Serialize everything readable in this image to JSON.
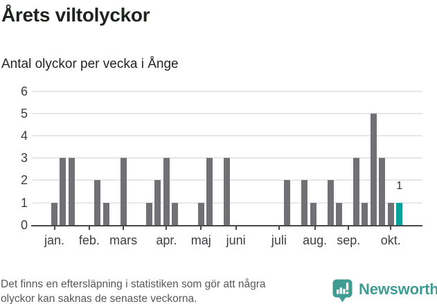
{
  "title": "Årets viltolyckor",
  "subtitle": "Antal olyckor per vecka i Ånge",
  "footnote": {
    "line1": "Det finns en eftersläpning i statistiken som gör att några",
    "line2": "olyckor kan saknas de senaste veckorna."
  },
  "brand": {
    "name": "Newsworthy",
    "color": "#3f9c93"
  },
  "colors": {
    "bar": "#717175",
    "highlight_bar": "#00a39b",
    "gridline": "#e7e7e9",
    "axis": "#47474c",
    "tick_label": "#3d3d43",
    "value_label": "#2e2e33"
  },
  "chart_data": {
    "type": "bar",
    "title": "Årets viltolyckor",
    "subtitle": "Antal olyckor per vecka i Ånge",
    "xlabel": "",
    "ylabel": "",
    "ylim": [
      0,
      6
    ],
    "yticks": [
      0,
      1,
      2,
      3,
      4,
      5,
      6
    ],
    "grid": "horizontal",
    "categories_unit": "week",
    "weekly_values": [
      1,
      3,
      3,
      0,
      0,
      2,
      1,
      0,
      3,
      0,
      0,
      1,
      2,
      3,
      1,
      0,
      0,
      1,
      3,
      0,
      3,
      0,
      0,
      0,
      0,
      0,
      0,
      2,
      0,
      2,
      1,
      0,
      2,
      1,
      0,
      3,
      1,
      5,
      3,
      1,
      1
    ],
    "highlight_last_bar": true,
    "last_bar_value_label": "1",
    "month_ticks": [
      {
        "label": "jan.",
        "week": 1
      },
      {
        "label": "feb.",
        "week": 5.05
      },
      {
        "label": "mars",
        "week": 9
      },
      {
        "label": "apr.",
        "week": 14
      },
      {
        "label": "maj",
        "week": 18
      },
      {
        "label": "juni",
        "week": 22.05
      },
      {
        "label": "juli",
        "week": 27.05
      },
      {
        "label": "aug.",
        "week": 31.2
      },
      {
        "label": "sep.",
        "week": 35.1
      },
      {
        "label": "okt.",
        "week": 40
      }
    ]
  }
}
